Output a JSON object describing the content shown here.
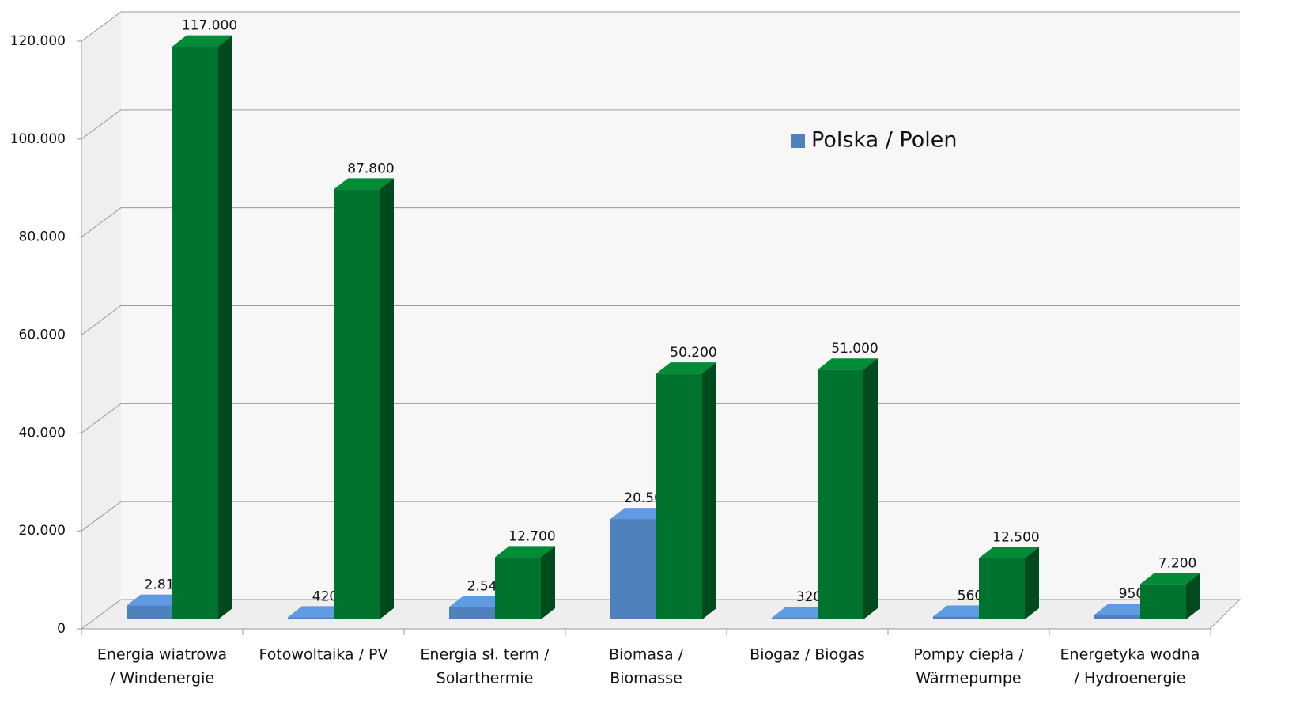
{
  "chart_data": {
    "type": "bar3d",
    "categories": [
      [
        "Energia wiatrowa",
        "/ Windenergie"
      ],
      [
        "Fotowoltaika / PV"
      ],
      [
        "Energia sł. term /",
        "Solarthermie"
      ],
      [
        "Biomasa /",
        "Biomasse"
      ],
      [
        "Biogaz / Biogas"
      ],
      [
        "Pompy ciepła /",
        "Wärmepumpe"
      ],
      [
        "Energetyka wodna",
        "/ Hydroenergie"
      ]
    ],
    "series": [
      {
        "name": "Polska / Polen",
        "color": "#4f81bd",
        "values": [
          2815,
          420,
          2540,
          20500,
          320,
          560,
          950
        ],
        "value_labels": [
          "2.815",
          "420",
          "2.540",
          "20.500",
          "320",
          "560",
          "950"
        ]
      },
      {
        "color": "#00742e",
        "values": [
          117000,
          87800,
          12700,
          50200,
          51000,
          12500,
          7200
        ],
        "value_labels": [
          "117.000",
          "87.800",
          "12.700",
          "50.200",
          "51.000",
          "12.500",
          "7.200"
        ]
      }
    ],
    "ylim": [
      0,
      120000
    ],
    "yticks": [
      0,
      {
        "value": 20000,
        "label": "20.000"
      },
      {
        "value": 40000,
        "label": "40.000"
      },
      {
        "value": 60000,
        "label": "60.000"
      },
      {
        "value": 80000,
        "label": "80.000"
      },
      {
        "value": 100000,
        "label": "100.000"
      },
      {
        "value": 120000,
        "label": "120.000"
      }
    ],
    "grid": true
  }
}
